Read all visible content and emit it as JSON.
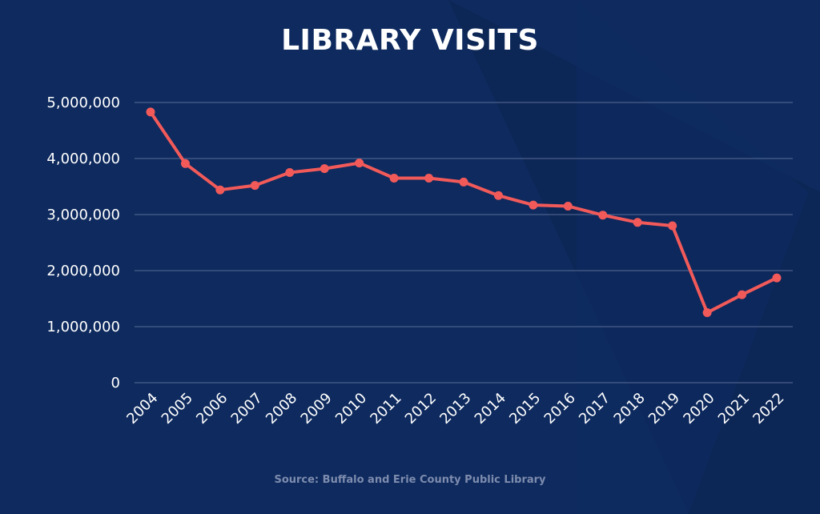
{
  "colors": {
    "background": "#0e2a5e",
    "line": "#f25a5a",
    "grid": "#5a6e96",
    "text": "#ffffff",
    "source_text": "#7e8cae"
  },
  "chart_data": {
    "type": "line",
    "title": "LIBRARY VISITS",
    "xlabel": "",
    "ylabel": "",
    "categories": [
      "2004",
      "2005",
      "2006",
      "2007",
      "2008",
      "2009",
      "2010",
      "2011",
      "2012",
      "2013",
      "2014",
      "2015",
      "2016",
      "2017",
      "2018",
      "2019",
      "2020",
      "2021",
      "2022"
    ],
    "series": [
      {
        "values": [
          4830000,
          3910000,
          3440000,
          3520000,
          3750000,
          3820000,
          3920000,
          3650000,
          3650000,
          3580000,
          3340000,
          3170000,
          3150000,
          2990000,
          2860000,
          2800000,
          1250000,
          1570000,
          1870000
        ]
      }
    ],
    "ylim": [
      0,
      5000000
    ],
    "yticks": [
      "0",
      "1,000,000",
      "2,000,000",
      "3,000,000",
      "4,000,000",
      "5,000,000"
    ],
    "grid": true,
    "legend": "none"
  },
  "source": "Source: Buffalo and Erie County Public Library"
}
